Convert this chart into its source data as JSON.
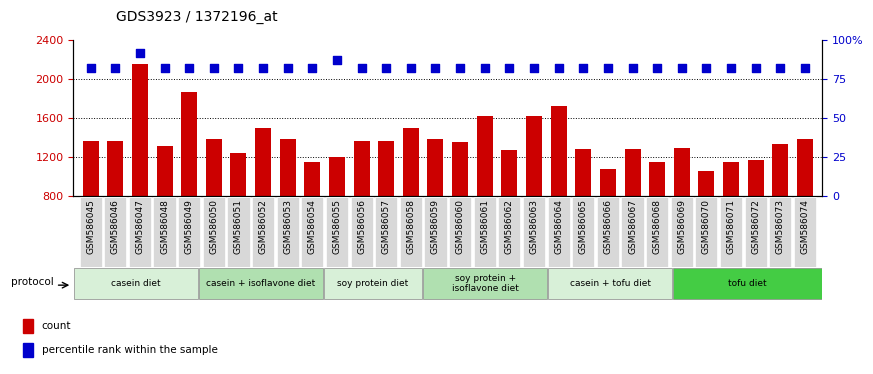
{
  "title": "GDS3923 / 1372196_at",
  "samples": [
    "GSM586045",
    "GSM586046",
    "GSM586047",
    "GSM586048",
    "GSM586049",
    "GSM586050",
    "GSM586051",
    "GSM586052",
    "GSM586053",
    "GSM586054",
    "GSM586055",
    "GSM586056",
    "GSM586057",
    "GSM586058",
    "GSM586059",
    "GSM586060",
    "GSM586061",
    "GSM586062",
    "GSM586063",
    "GSM586064",
    "GSM586065",
    "GSM586066",
    "GSM586067",
    "GSM586068",
    "GSM586069",
    "GSM586070",
    "GSM586071",
    "GSM586072",
    "GSM586073",
    "GSM586074"
  ],
  "counts": [
    1360,
    1360,
    2150,
    1310,
    1870,
    1380,
    1240,
    1500,
    1380,
    1150,
    1200,
    1360,
    1360,
    1500,
    1380,
    1350,
    1620,
    1270,
    1620,
    1720,
    1280,
    1080,
    1280,
    1150,
    1290,
    1060,
    1150,
    1170,
    1330,
    1380
  ],
  "percentile_ranks": [
    82,
    82,
    92,
    82,
    82,
    82,
    82,
    82,
    82,
    82,
    87,
    82,
    82,
    82,
    82,
    82,
    82,
    82,
    82,
    82,
    82,
    82,
    82,
    82,
    82,
    82,
    82,
    82,
    82,
    82
  ],
  "groups": [
    {
      "label": "casein diet",
      "start": 0,
      "end": 5,
      "color": "#d8f0d8"
    },
    {
      "label": "casein + isoflavone diet",
      "start": 5,
      "end": 10,
      "color": "#b0e0b0"
    },
    {
      "label": "soy protein diet",
      "start": 10,
      "end": 14,
      "color": "#d8f0d8"
    },
    {
      "label": "soy protein +\nisoflavone diet",
      "start": 14,
      "end": 19,
      "color": "#b0e0b0"
    },
    {
      "label": "casein + tofu diet",
      "start": 19,
      "end": 24,
      "color": "#d8f0d8"
    },
    {
      "label": "tofu diet",
      "start": 24,
      "end": 30,
      "color": "#44cc44"
    }
  ],
  "ylim_left": [
    800,
    2400
  ],
  "ylim_right": [
    0,
    100
  ],
  "yticks_left": [
    800,
    1200,
    1600,
    2000,
    2400
  ],
  "yticks_right": [
    0,
    25,
    50,
    75,
    100
  ],
  "ytick_right_labels": [
    "0",
    "25",
    "50",
    "75",
    "100%"
  ],
  "bar_color": "#cc0000",
  "dot_color": "#0000cc",
  "dot_size": 30,
  "background_color": "#ffffff",
  "tick_label_bg": "#d8d8d8"
}
